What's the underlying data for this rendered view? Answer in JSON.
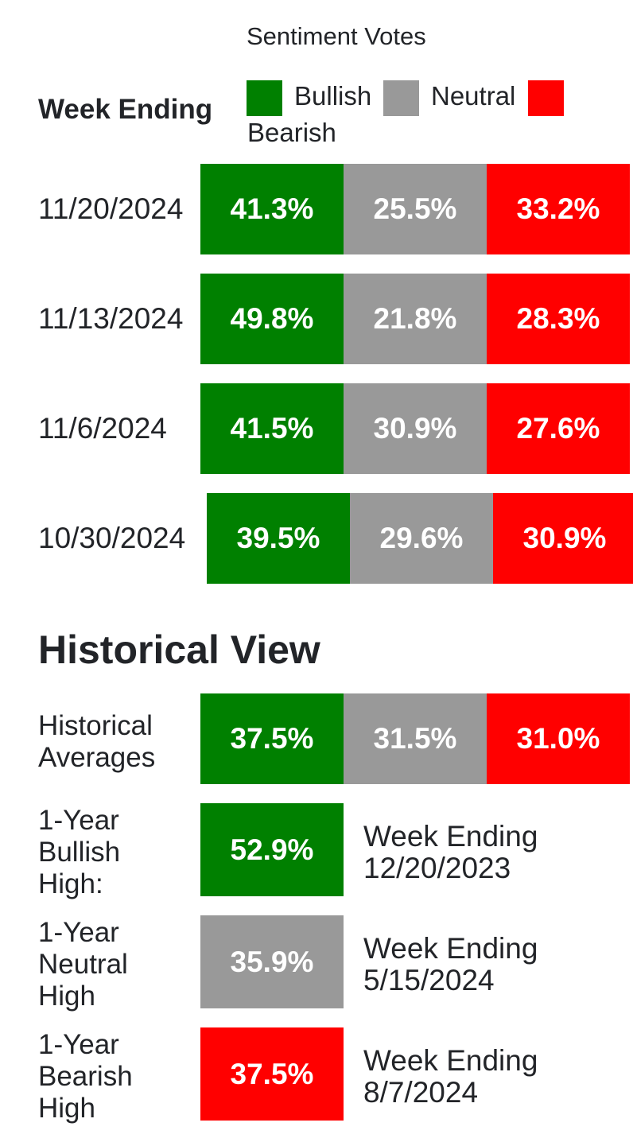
{
  "legend_title": "Sentiment Votes",
  "week_header": "Week Ending",
  "legend": [
    {
      "label": "Bullish",
      "color": "#008000"
    },
    {
      "label": "Neutral",
      "color": "#999999"
    },
    {
      "label": "Bearish",
      "color": "#ff0000"
    }
  ],
  "chart_data": {
    "type": "bar",
    "stacked": true,
    "categories": [
      "11/20/2024",
      "11/13/2024",
      "11/6/2024",
      "10/30/2024"
    ],
    "series": [
      {
        "name": "Bullish",
        "color": "#008000",
        "values": [
          41.3,
          49.8,
          41.5,
          39.5
        ],
        "labels": [
          "41.3%",
          "49.8%",
          "41.5%",
          "39.5%"
        ]
      },
      {
        "name": "Neutral",
        "color": "#999999",
        "values": [
          25.5,
          21.8,
          30.9,
          29.6
        ],
        "labels": [
          "25.5%",
          "21.8%",
          "30.9%",
          "29.6%"
        ]
      },
      {
        "name": "Bearish",
        "color": "#ff0000",
        "values": [
          33.2,
          28.3,
          27.6,
          30.9
        ],
        "labels": [
          "33.2%",
          "28.3%",
          "27.6%",
          "30.9%"
        ]
      }
    ]
  },
  "historical": {
    "title": "Historical View",
    "averages": {
      "label": [
        "Historical",
        "Averages"
      ],
      "values": [
        {
          "value": "37.5%",
          "color": "#008000"
        },
        {
          "value": "31.5%",
          "color": "#999999"
        },
        {
          "value": "31.0%",
          "color": "#ff0000"
        }
      ]
    },
    "highs": [
      {
        "label": [
          "1-Year",
          "Bullish",
          "High:"
        ],
        "value": "52.9%",
        "color": "#008000",
        "week": [
          "Week Ending",
          "12/20/2023"
        ]
      },
      {
        "label": [
          "1-Year",
          "Neutral",
          "High"
        ],
        "value": "35.9%",
        "color": "#999999",
        "week": [
          "Week Ending",
          "5/15/2024"
        ]
      },
      {
        "label": [
          "1-Year",
          "Bearish",
          "High"
        ],
        "value": "37.5%",
        "color": "#ff0000",
        "week": [
          "Week Ending",
          "8/7/2024"
        ]
      }
    ]
  }
}
